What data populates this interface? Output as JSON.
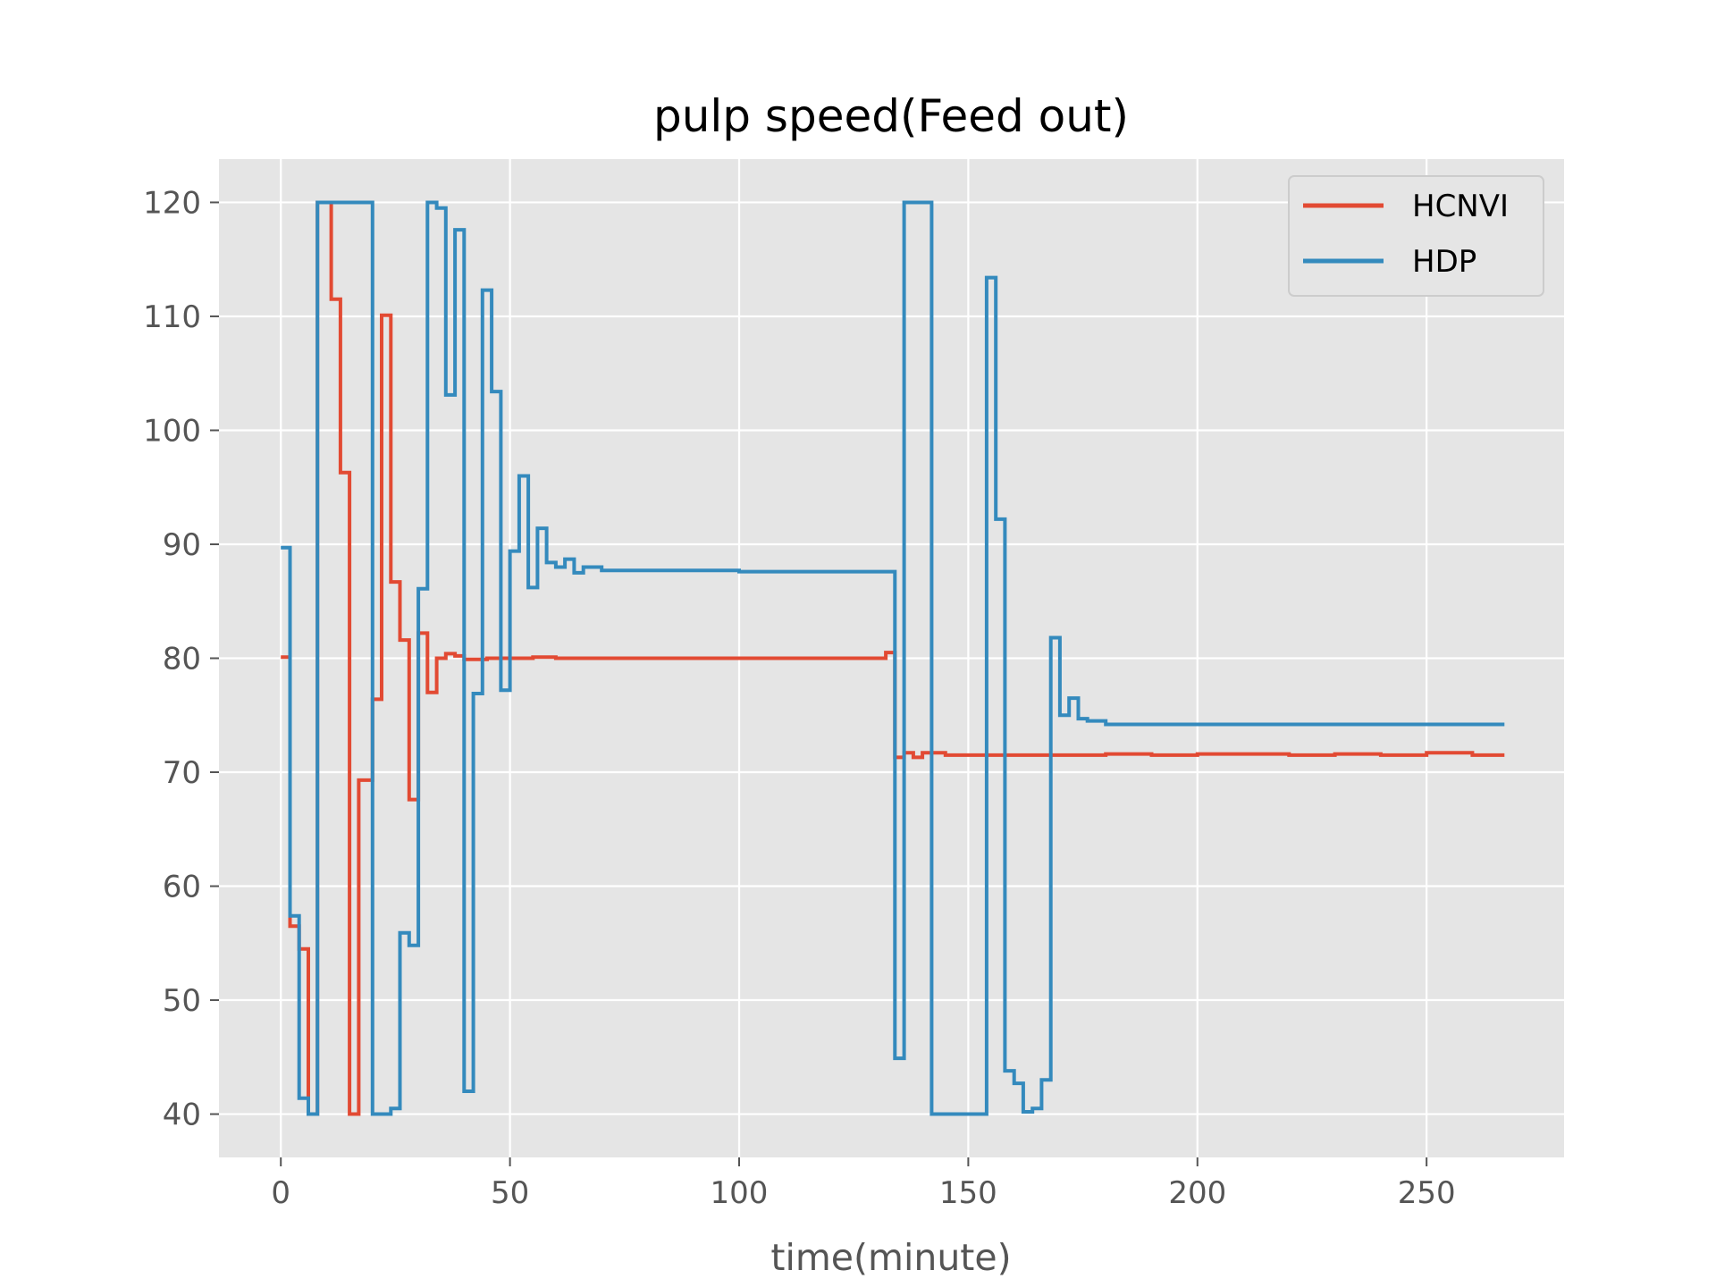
{
  "chart_data": {
    "type": "line",
    "title": "pulp speed(Feed out)",
    "xlabel": "time(minute)",
    "ylabel": "",
    "xlim": [
      -13.5,
      280
    ],
    "ylim": [
      36.2,
      123.8
    ],
    "x_ticks": [
      0,
      50,
      100,
      150,
      200,
      250
    ],
    "y_ticks": [
      40,
      50,
      60,
      70,
      80,
      90,
      100,
      110,
      120
    ],
    "grid": true,
    "legend_position": "top-right",
    "colors": {
      "background": "#E5E5E5",
      "grid": "#FFFFFF",
      "HCNVI": "#E24A33",
      "HDP": "#348ABD"
    },
    "series": [
      {
        "name": "HCNVI",
        "step": true,
        "points": [
          [
            0,
            80.1
          ],
          [
            2,
            56.5
          ],
          [
            4,
            54.5
          ],
          [
            6,
            40
          ],
          [
            8,
            120
          ],
          [
            11,
            111.5
          ],
          [
            13,
            96.3
          ],
          [
            15,
            40
          ],
          [
            17,
            69.3
          ],
          [
            20,
            76.4
          ],
          [
            22,
            110.1
          ],
          [
            24,
            86.7
          ],
          [
            26,
            81.6
          ],
          [
            28,
            67.6
          ],
          [
            30,
            82.2
          ],
          [
            32,
            77
          ],
          [
            34,
            80
          ],
          [
            36,
            80.4
          ],
          [
            38,
            80.2
          ],
          [
            40,
            79.9
          ],
          [
            45,
            80
          ],
          [
            50,
            80
          ],
          [
            55,
            80.1
          ],
          [
            60,
            80
          ],
          [
            70,
            80
          ],
          [
            80,
            80
          ],
          [
            90,
            80
          ],
          [
            100,
            80
          ],
          [
            110,
            80
          ],
          [
            120,
            80
          ],
          [
            130,
            80
          ],
          [
            132,
            80.5
          ],
          [
            134,
            71.3
          ],
          [
            136,
            71.7
          ],
          [
            138,
            71.3
          ],
          [
            140,
            71.7
          ],
          [
            145,
            71.5
          ],
          [
            150,
            71.5
          ],
          [
            160,
            71.5
          ],
          [
            170,
            71.5
          ],
          [
            180,
            71.6
          ],
          [
            190,
            71.5
          ],
          [
            200,
            71.6
          ],
          [
            210,
            71.6
          ],
          [
            220,
            71.5
          ],
          [
            230,
            71.6
          ],
          [
            240,
            71.5
          ],
          [
            250,
            71.7
          ],
          [
            260,
            71.5
          ],
          [
            267,
            71.5
          ]
        ]
      },
      {
        "name": "HDP",
        "step": true,
        "points": [
          [
            0,
            89.7
          ],
          [
            2,
            57.4
          ],
          [
            4,
            41.4
          ],
          [
            6,
            40
          ],
          [
            8,
            120
          ],
          [
            10,
            120
          ],
          [
            20,
            40
          ],
          [
            24,
            40.5
          ],
          [
            26,
            55.9
          ],
          [
            28,
            54.8
          ],
          [
            30,
            86.1
          ],
          [
            32,
            120
          ],
          [
            34,
            119.5
          ],
          [
            36,
            103.1
          ],
          [
            38,
            117.6
          ],
          [
            40,
            42
          ],
          [
            42,
            76.9
          ],
          [
            44,
            112.3
          ],
          [
            46,
            103.4
          ],
          [
            48,
            77.2
          ],
          [
            50,
            89.4
          ],
          [
            52,
            96
          ],
          [
            54,
            86.2
          ],
          [
            56,
            91.4
          ],
          [
            58,
            88.4
          ],
          [
            60,
            88
          ],
          [
            62,
            88.7
          ],
          [
            64,
            87.5
          ],
          [
            66,
            88
          ],
          [
            70,
            87.7
          ],
          [
            80,
            87.7
          ],
          [
            100,
            87.6
          ],
          [
            120,
            87.6
          ],
          [
            133,
            87.6
          ],
          [
            134,
            44.9
          ],
          [
            136,
            120
          ],
          [
            142,
            40
          ],
          [
            154,
            113.4
          ],
          [
            156,
            92.2
          ],
          [
            158,
            43.8
          ],
          [
            160,
            42.7
          ],
          [
            162,
            40.2
          ],
          [
            164,
            40.5
          ],
          [
            166,
            43
          ],
          [
            168,
            81.8
          ],
          [
            170,
            75
          ],
          [
            172,
            76.5
          ],
          [
            174,
            74.7
          ],
          [
            176,
            74.5
          ],
          [
            180,
            74.2
          ],
          [
            190,
            74.2
          ],
          [
            200,
            74.2
          ],
          [
            220,
            74.2
          ],
          [
            240,
            74.2
          ],
          [
            260,
            74.2
          ],
          [
            267,
            74.2
          ]
        ]
      }
    ]
  }
}
